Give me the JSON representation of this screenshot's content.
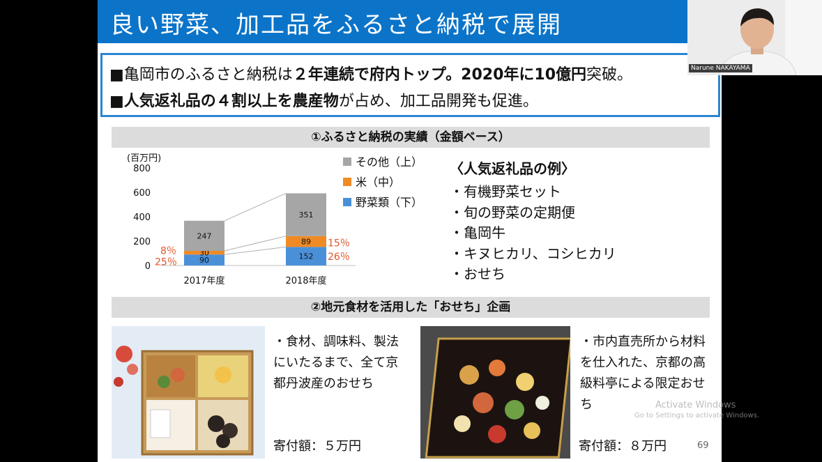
{
  "slide": {
    "title": "良い野菜、加工品をふるさと納税で展開",
    "key_points": {
      "line1": {
        "bullet": "■",
        "a": "亀岡市のふるさと納税は",
        "b": "２年連続で府内トップ。2020年に10億円",
        "c": "突破。"
      },
      "line2": {
        "bullet": "■",
        "a": "人気返礼品の４割以上を農産物",
        "b": "が占め、加工品開発も促進。"
      }
    },
    "section1_title": "①ふるさと納税の実績（金額ベース）",
    "section2_title": "②地元食材を活用した「おせち」企画",
    "examples": {
      "title": "〈人気返礼品の例〉",
      "items": [
        "・有機野菜セット",
        "・旬の野菜の定期便",
        "・亀岡牛",
        "・キヌヒカリ、コシヒカリ",
        "・おせち"
      ]
    },
    "osechi1": {
      "desc": "・食材、調味料、製法にいたるまで、全て京都丹波産のおせち",
      "donation": "寄付額：５万円"
    },
    "osechi2": {
      "desc": "・市内直売所から材料を仕入れた、京都の高級料亭による限定おせち",
      "donation": "寄付額：８万円"
    },
    "page_number": "69"
  },
  "chart_data": {
    "type": "bar",
    "stacked": true,
    "unit_label": "(百万円)",
    "categories": [
      "2017年度",
      "2018年度"
    ],
    "yticks": [
      0,
      200,
      400,
      600,
      800
    ],
    "ylim": [
      0,
      800
    ],
    "series": [
      {
        "name": "野菜類（下）",
        "values": [
          90,
          152
        ],
        "color": "#4a90d9"
      },
      {
        "name": "米（中）",
        "values": [
          30,
          89
        ],
        "color": "#f08a24"
      },
      {
        "name": "その他（上）",
        "values": [
          247,
          351
        ],
        "color": "#a6a6a6"
      }
    ],
    "percent_labels": [
      {
        "category": "2017年度",
        "rice": "8％",
        "vegetables": "25％"
      },
      {
        "category": "2018年度",
        "rice": "15％",
        "vegetables": "26％"
      }
    ],
    "legend_position": "right"
  },
  "webcam": {
    "name": "Narune NAKAYAMA"
  },
  "watermark": {
    "line1": "Activate Windows",
    "line2": "Go to Settings to activate Windows."
  },
  "colors": {
    "title_bar": "#0b74c9",
    "box_border": "#2a86d1",
    "percent_text": "#e0552a",
    "section_bar": "#dcdcdc"
  }
}
